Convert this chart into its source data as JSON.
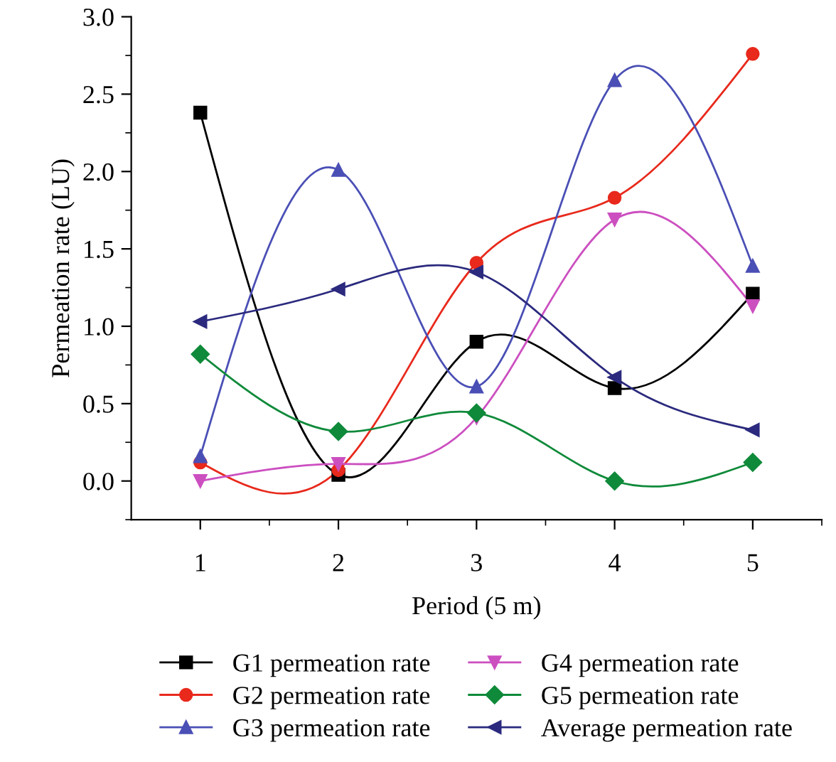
{
  "chart_data": {
    "type": "line",
    "xlabel": "Period (5 m)",
    "ylabel": "Permeation rate (LU)",
    "x": [
      1,
      2,
      3,
      4,
      5
    ],
    "xlim": [
      0.5,
      5.5
    ],
    "xticks": [
      1,
      2,
      3,
      4,
      5
    ],
    "ylim": [
      -0.25,
      3.0
    ],
    "yticks": [
      {
        "value": 0,
        "label": "0.0"
      },
      0.5,
      {
        "value": 1,
        "label": "1.0"
      },
      1.5,
      {
        "value": 2,
        "label": "2.0"
      },
      2.5,
      {
        "value": 3,
        "label": "3.0"
      }
    ],
    "grid": false,
    "legend": "bottom",
    "series": [
      {
        "name": "G1 permeation rate",
        "color": "#000000",
        "marker": "square",
        "values": [
          2.38,
          0.04,
          0.9,
          0.6,
          1.21
        ]
      },
      {
        "name": "G2 permeation rate",
        "color": "#e8291c",
        "marker": "circle",
        "values": [
          0.12,
          0.07,
          1.41,
          1.83,
          2.76
        ]
      },
      {
        "name": "G3 permeation rate",
        "color": "#4a4fb5",
        "marker": "triangle",
        "values": [
          0.16,
          2.01,
          0.61,
          2.59,
          1.39
        ]
      },
      {
        "name": "G4 permeation rate",
        "color": "#cc4fc0",
        "marker": "triangle_down",
        "values": [
          0.0,
          0.11,
          0.41,
          1.69,
          1.13
        ]
      },
      {
        "name": "G5 permeation rate",
        "color": "#0f8a3a",
        "marker": "diamond",
        "values": [
          0.82,
          0.32,
          0.44,
          0.0,
          0.12
        ]
      },
      {
        "name": "Average permeation rate",
        "color": "#2b2a7e",
        "marker": "triangle_left",
        "values": [
          1.03,
          1.24,
          1.35,
          0.67,
          0.33
        ]
      }
    ]
  }
}
